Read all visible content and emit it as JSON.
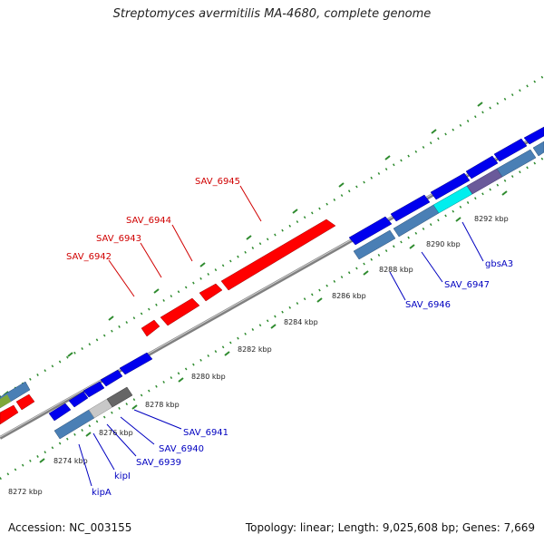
{
  "title": "Streptomyces avermitilis MA-4680, complete genome",
  "footer": {
    "accession": "Accession: NC_003155",
    "summary": "Topology: linear; Length: 9,025,608 bp; Genes: 7,669"
  },
  "colors": {
    "forward_gene": "#ff0000",
    "reverse_gene": "#0000ee",
    "reverse_cds": "#4a7fb5",
    "highlight_cyan": "#00eeee",
    "grey_gene": "#666666",
    "tick_green": "#2e8b2e",
    "backbone": "#808080"
  },
  "ticks": [
    "8272 kbp",
    "8274 kbp",
    "8276 kbp",
    "8278 kbp",
    "8280 kbp",
    "8282 kbp",
    "8284 kbp",
    "8286 kbp",
    "8288 kbp",
    "8290 kbp",
    "8292 kbp"
  ],
  "forward_labels": [
    "SAV_6942",
    "SAV_6943",
    "SAV_6944",
    "SAV_6945"
  ],
  "reverse_labels": [
    "kipA",
    "kipI",
    "SAV_6939",
    "SAV_6940",
    "SAV_6941",
    "SAV_6946",
    "SAV_6947",
    "gbsA3"
  ]
}
